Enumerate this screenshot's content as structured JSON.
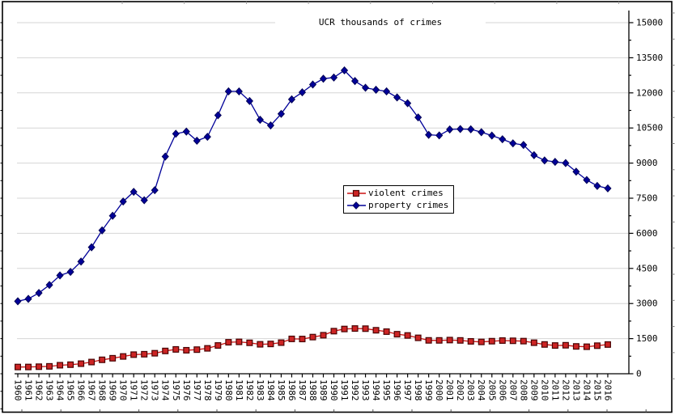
{
  "window": {
    "background": "#ffffff",
    "frame_color": "#000000"
  },
  "chart_data": {
    "type": "line",
    "title": "UCR thousands of crimes",
    "xlabel": "",
    "ylabel": "",
    "ylim": [
      0,
      15000
    ],
    "y_major_step": 1500,
    "y_minor_step": 750,
    "grid": true,
    "grid_color": "#d6d6d6",
    "axis_color": "#000000",
    "legend_position": "center",
    "x": [
      1960,
      1961,
      1962,
      1963,
      1964,
      1965,
      1966,
      1967,
      1968,
      1969,
      1970,
      1971,
      1972,
      1973,
      1974,
      1975,
      1976,
      1977,
      1978,
      1979,
      1980,
      1981,
      1982,
      1983,
      1984,
      1985,
      1986,
      1987,
      1988,
      1989,
      1990,
      1991,
      1992,
      1993,
      1994,
      1995,
      1996,
      1997,
      1998,
      1999,
      2000,
      2001,
      2002,
      2003,
      2004,
      2005,
      2006,
      2007,
      2008,
      2009,
      2010,
      2011,
      2012,
      2013,
      2014,
      2015,
      2016
    ],
    "series": [
      {
        "name": "violent crimes",
        "marker": "square",
        "line_color": "#cc1111",
        "fill_color": "#cd2424",
        "edge_color": "#4a0404",
        "values": [
          288,
          289,
          301,
          316,
          364,
          387,
          430,
          500,
          595,
          662,
          739,
          816,
          834,
          876,
          974,
          1040,
          1004,
          1030,
          1085,
          1208,
          1345,
          1362,
          1322,
          1258,
          1273,
          1329,
          1489,
          1484,
          1566,
          1646,
          1820,
          1912,
          1932,
          1926,
          1858,
          1799,
          1689,
          1636,
          1534,
          1426,
          1425,
          1439,
          1424,
          1384,
          1360,
          1391,
          1418,
          1408,
          1394,
          1326,
          1251,
          1206,
          1217,
          1168,
          1154,
          1199,
          1248
        ]
      },
      {
        "name": "property crimes",
        "marker": "diamond",
        "line_color": "#000099",
        "fill_color": "#000099",
        "edge_color": "#000055",
        "values": [
          3096,
          3199,
          3451,
          3793,
          4200,
          4352,
          4793,
          5404,
          6125,
          6749,
          7359,
          7772,
          7414,
          7842,
          9279,
          10253,
          10345,
          9955,
          10123,
          11042,
          12064,
          12062,
          11652,
          10851,
          10609,
          11103,
          11723,
          12025,
          12357,
          12605,
          12655,
          12961,
          12506,
          12219,
          12132,
          12064,
          11805,
          11558,
          10952,
          10208,
          10183,
          10437,
          10455,
          10443,
          10319,
          10175,
          10019,
          9843,
          9775,
          9338,
          9113,
          9052,
          9001,
          8633,
          8278,
          8024,
          7919
        ]
      }
    ],
    "y_tick_labels": [
      "0",
      "1500",
      "3000",
      "4500",
      "6000",
      "7500",
      "9000",
      "10500",
      "12000",
      "13500",
      "15000"
    ]
  }
}
